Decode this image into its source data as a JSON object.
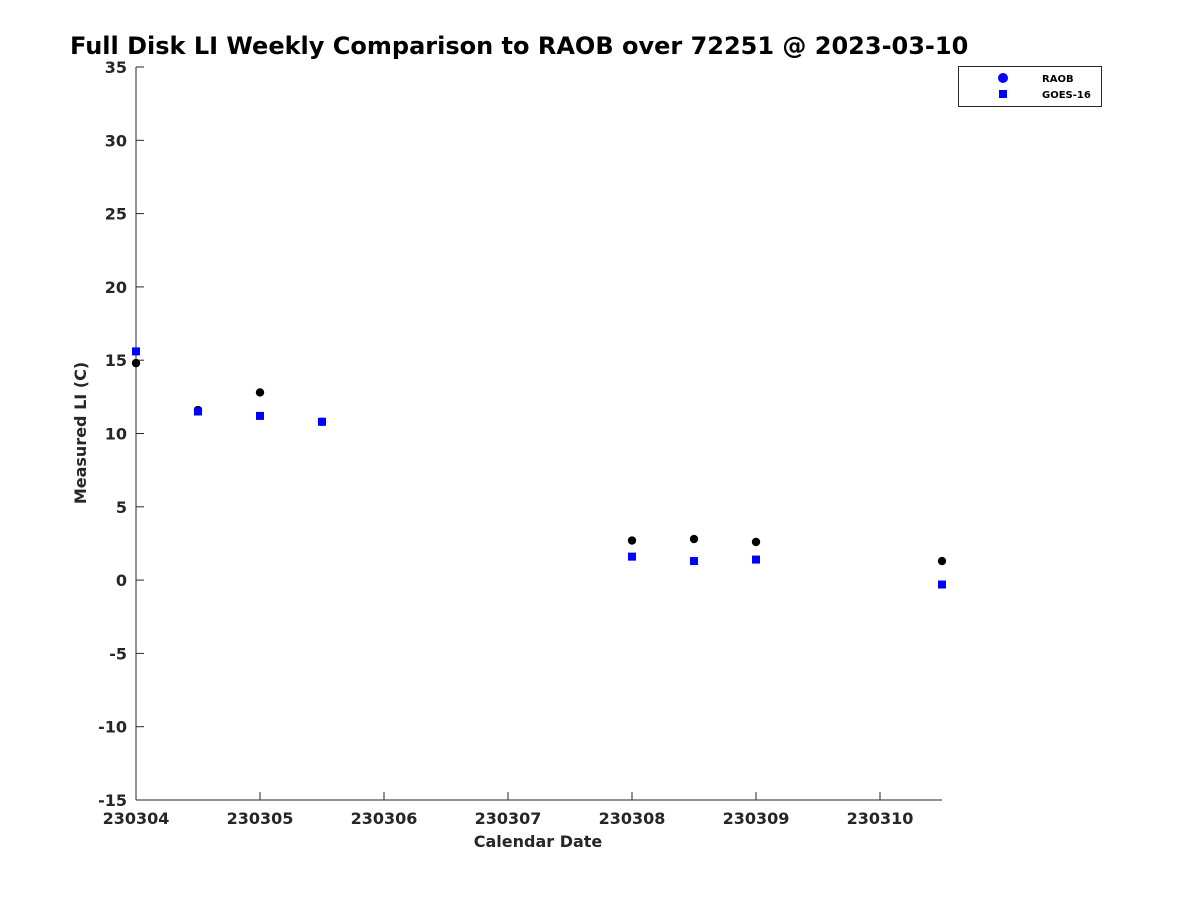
{
  "chart_data": {
    "type": "scatter",
    "title": "Full Disk LI Weekly Comparison to RAOB over 72251 @ 2023-03-10",
    "xlabel": "Calendar Date",
    "ylabel": "Measured LI (C)",
    "xlim": [
      230304,
      230310.5
    ],
    "ylim": [
      -15,
      35
    ],
    "xticks": [
      230304,
      230305,
      230306,
      230307,
      230308,
      230309,
      230310
    ],
    "xtick_labels": [
      "230304",
      "230305",
      "230306",
      "230307",
      "230308",
      "230309",
      "230310"
    ],
    "yticks": [
      -15,
      -10,
      -5,
      0,
      5,
      10,
      15,
      20,
      25,
      30,
      35
    ],
    "ytick_labels": [
      "-15",
      "-10",
      "-5",
      "0",
      "5",
      "10",
      "15",
      "20",
      "25",
      "30",
      "35"
    ],
    "grid": false,
    "legend_position": "top-right",
    "series": [
      {
        "name": "RAOB",
        "marker": "circle",
        "color": "#000000",
        "legend_color": "#0000ff",
        "x": [
          230304,
          230304.5,
          230305,
          230305.5,
          230308,
          230308.5,
          230309,
          230310.5
        ],
        "y": [
          14.8,
          11.6,
          12.8,
          10.8,
          2.7,
          2.8,
          2.6,
          1.3
        ]
      },
      {
        "name": "GOES-16",
        "marker": "square",
        "color": "#0000ff",
        "x": [
          230304,
          230304.5,
          230305,
          230305.5,
          230308,
          230308.5,
          230309,
          230310.5
        ],
        "y": [
          15.6,
          11.5,
          11.2,
          10.8,
          1.6,
          1.3,
          1.4,
          -0.3
        ]
      }
    ]
  }
}
